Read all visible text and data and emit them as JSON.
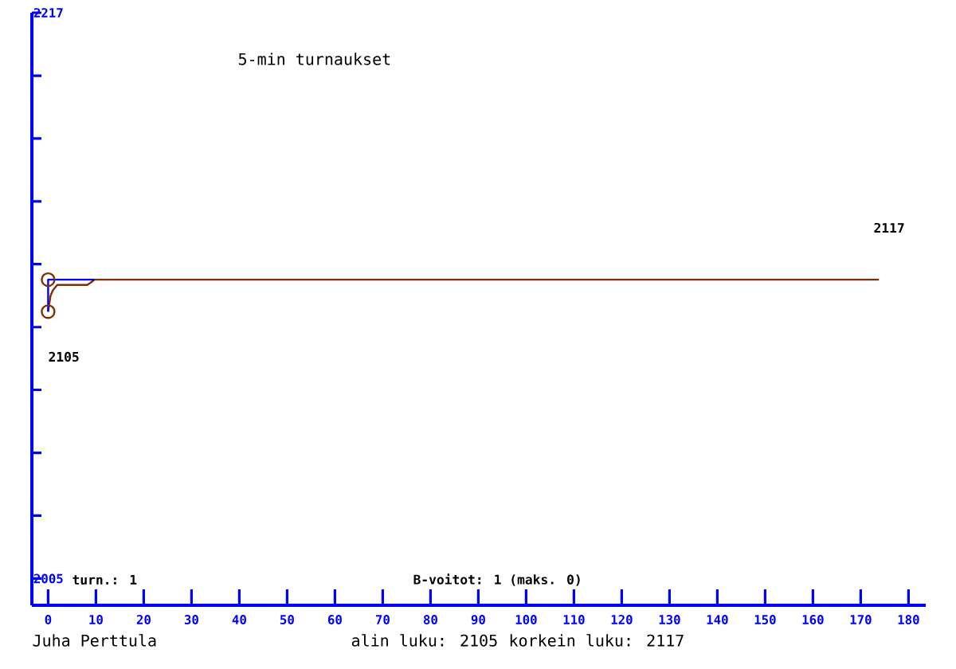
{
  "chart_data": {
    "type": "line",
    "title": "5-min turnaukset",
    "xlim": [
      -3.4,
      183.6
    ],
    "ylim": [
      1995,
      2217
    ],
    "xticks": [
      0,
      10,
      20,
      30,
      40,
      50,
      60,
      70,
      80,
      90,
      100,
      110,
      120,
      130,
      140,
      150,
      160,
      170,
      180
    ],
    "yticks": [
      2005,
      {
        "value": 2028.6,
        "label": null
      },
      {
        "value": 2052.1,
        "label": null
      },
      {
        "value": 2075.7,
        "label": null
      },
      {
        "value": 2099.2,
        "label": null
      },
      {
        "value": 2122.8,
        "label": null
      },
      {
        "value": 2146.3,
        "label": null
      },
      {
        "value": 2169.9,
        "label": null
      },
      {
        "value": 2193.4,
        "label": null
      },
      2217
    ],
    "series": [
      {
        "color": "#803000",
        "x": [
          0,
          0.5,
          1,
          1.9,
          3,
          5.2,
          8.2,
          9,
          9.7,
          173.8
        ],
        "values": [
          2105,
          2111,
          2113,
          2115,
          2115,
          2115,
          2115,
          2116,
          2117,
          2117
        ]
      },
      {
        "color": "#0000ff",
        "x": [
          0,
          0,
          9.7
        ],
        "values": [
          2105,
          2117,
          2117
        ]
      },
      {
        "type": "scatter",
        "color": "#803000",
        "marker": "circle",
        "x": [
          0,
          0
        ],
        "values": [
          2105,
          2117
        ]
      }
    ],
    "annotations": [
      "turn.: 1",
      "B-voitot: 1 (maks. 0)",
      "Juha Perttula",
      "alin luku: 2105",
      "korkein luku: 2117",
      "2105",
      "2117"
    ],
    "grid": false
  }
}
